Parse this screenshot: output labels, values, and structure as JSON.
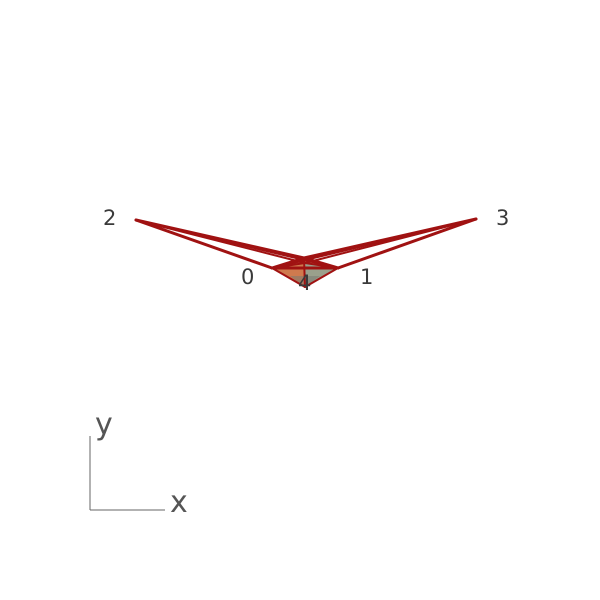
{
  "scene": {
    "background": "#ffffff",
    "edge_color": "#a01212",
    "face_colors": {
      "top": "#c0584a",
      "upper": "#b43a32",
      "left_lower": "#cf7a4e",
      "right_lower": "#9aa08c",
      "lower_dark": "#7a7a72"
    }
  },
  "nodes": [
    {
      "id": "0",
      "label": "0"
    },
    {
      "id": "1",
      "label": "1"
    },
    {
      "id": "2",
      "label": "2"
    },
    {
      "id": "3",
      "label": "3"
    },
    {
      "id": "4",
      "label": "4"
    }
  ],
  "axes": {
    "x_label": "x",
    "y_label": "y",
    "axis_color": "#666666"
  }
}
